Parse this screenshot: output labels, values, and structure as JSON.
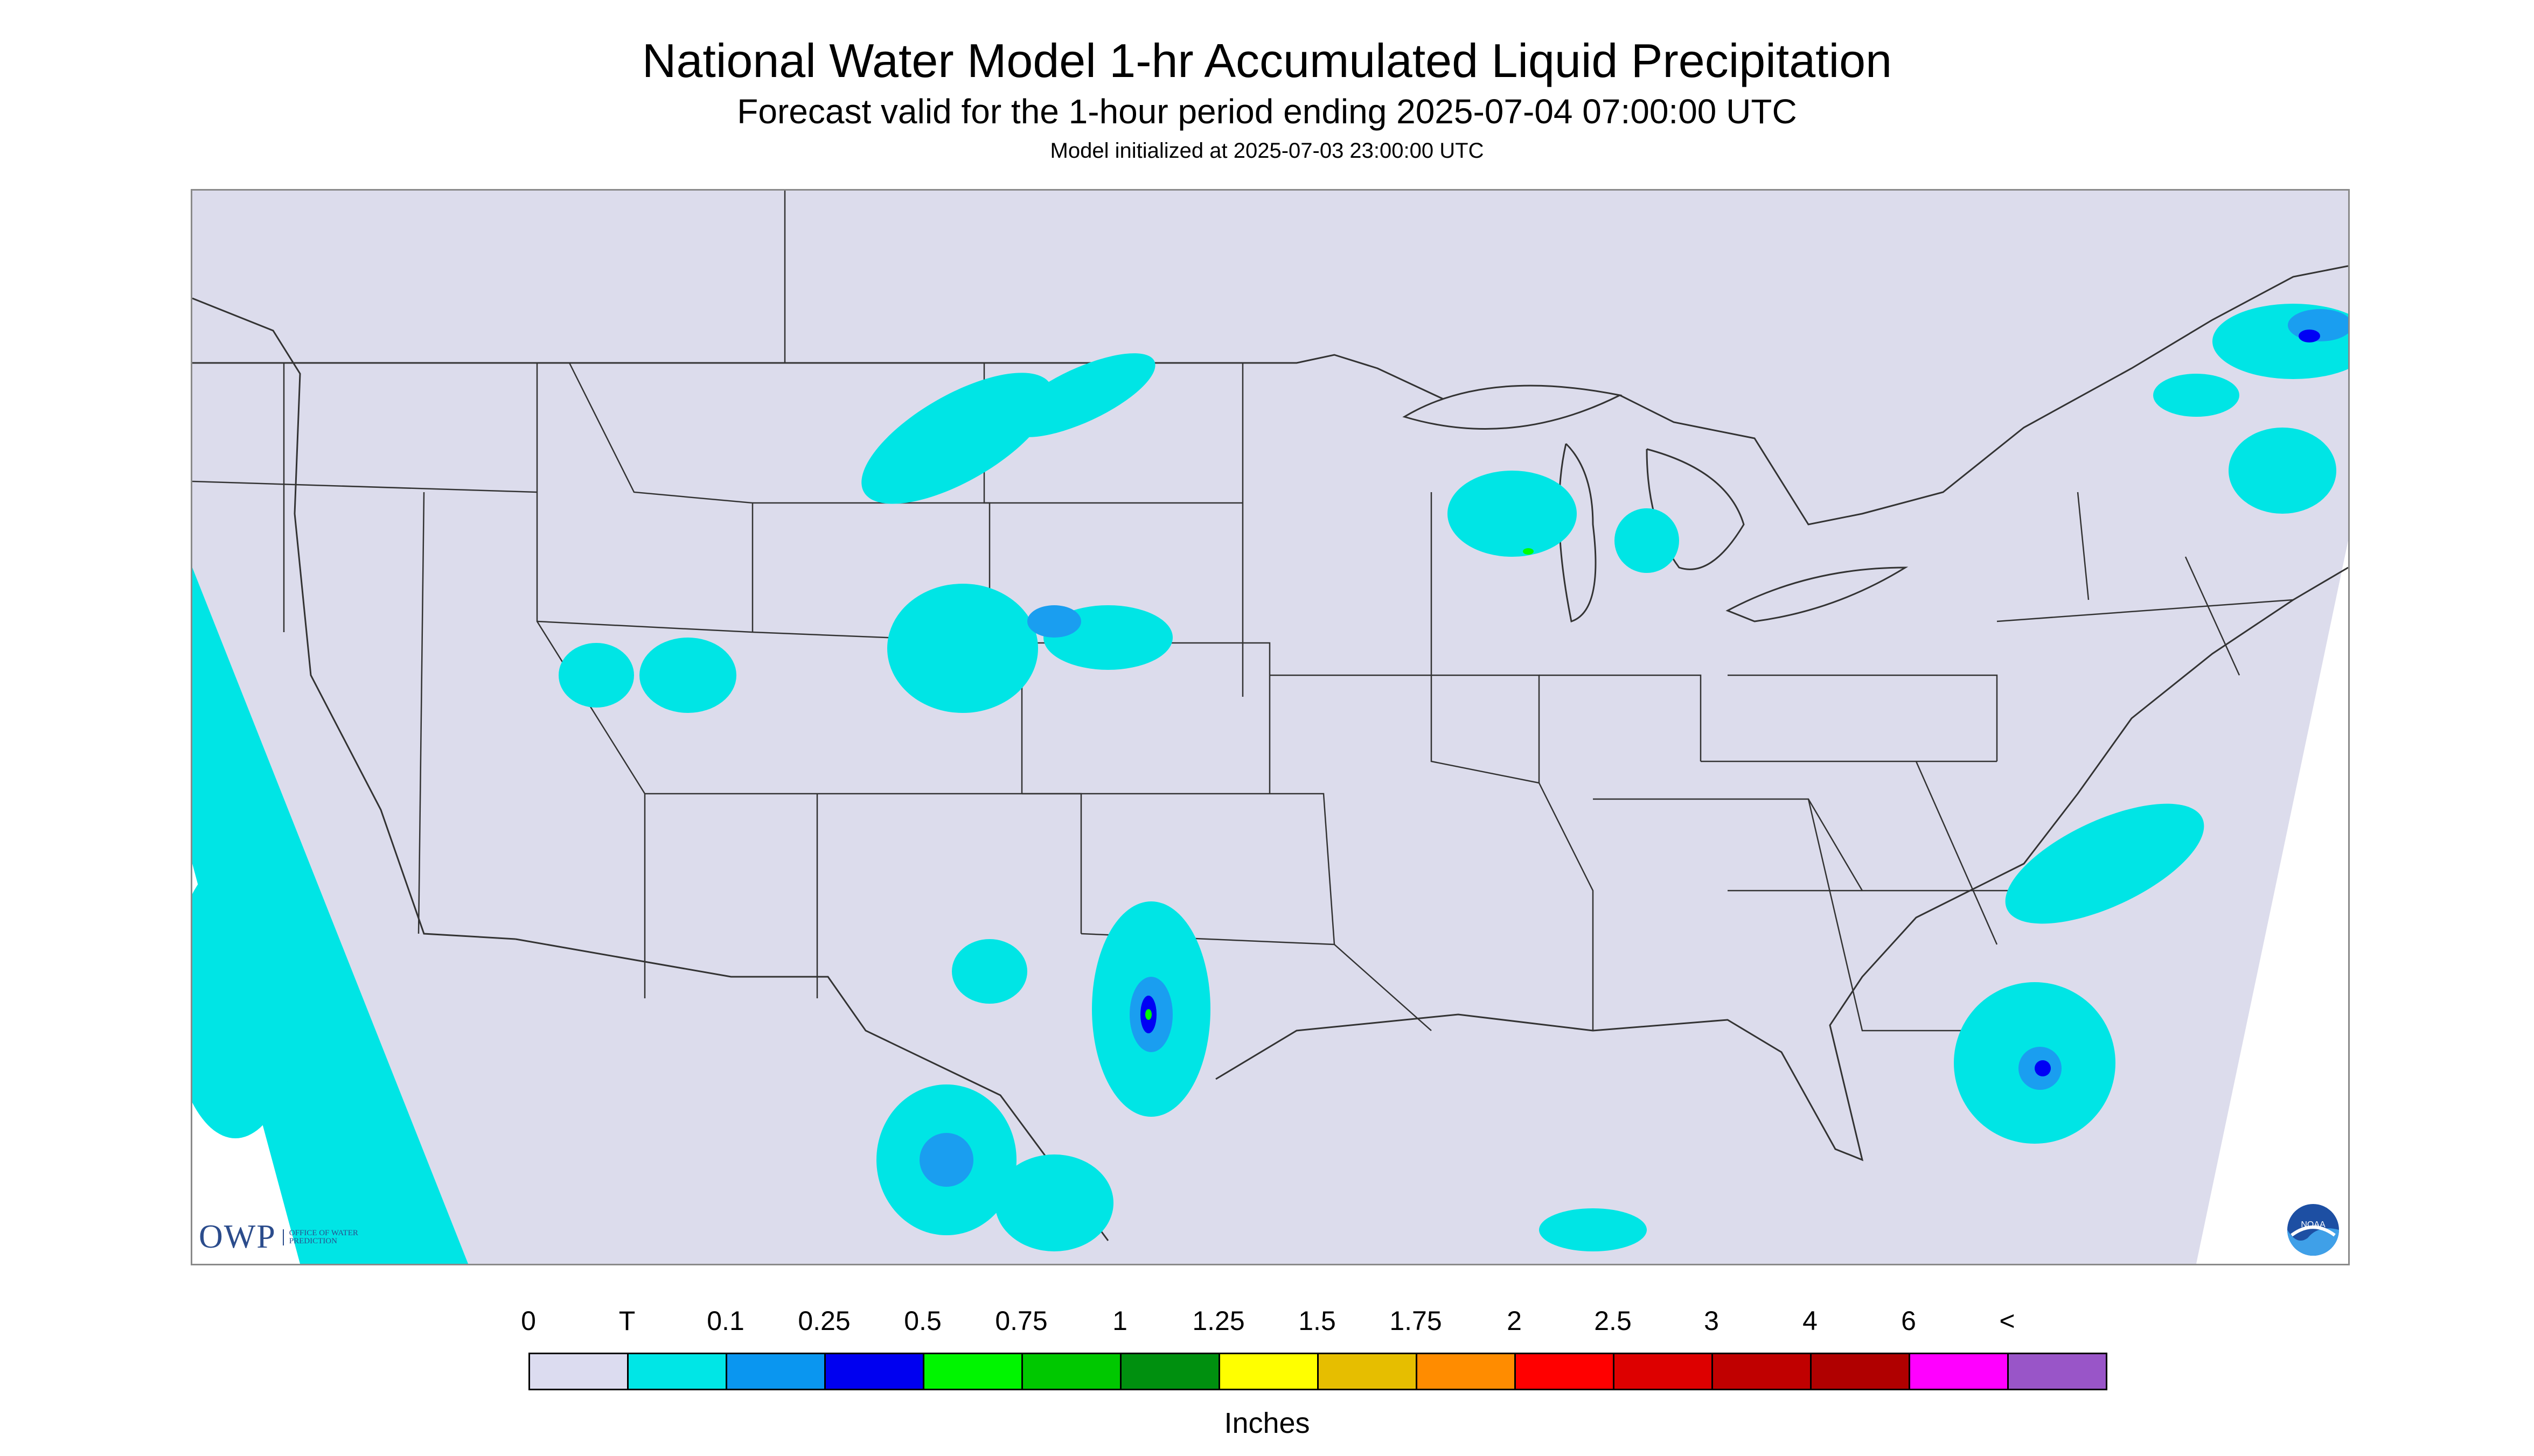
{
  "header": {
    "title": "National Water Model 1-hr Accumulated Liquid Precipitation",
    "subtitle": "Forecast valid for the 1-hour period ending 2025-07-04 07:00:00 UTC",
    "init": "Model initialized at 2025-07-03 23:00:00 UTC"
  },
  "colors": {
    "land": "#dcdcec",
    "water_outside": "#ffffff",
    "border": "#2a2a2a",
    "precip_trace": "#00e5e5",
    "precip_light": "#1a9ef0",
    "precip_blue": "#0000f5",
    "precip_green": "#00ff00"
  },
  "logos": {
    "owp_letters": "OWP",
    "owp_sub": "OFFICE OF WATER PREDICTION",
    "noaa_text": "NOAA",
    "owp_icon": "owp-logo",
    "noaa_icon": "noaa-logo"
  },
  "legend": {
    "labels": [
      "0",
      "T",
      "0.1",
      "0.25",
      "0.5",
      "0.75",
      "1",
      "1.25",
      "1.5",
      "1.75",
      "2",
      "2.5",
      "3",
      "4",
      "6",
      "<"
    ],
    "colors": [
      "#dcdcf0",
      "#00e6e6",
      "#0a96f0",
      "#0000f0",
      "#00f500",
      "#00c800",
      "#00900f",
      "#ffff00",
      "#e6be00",
      "#ff8c00",
      "#ff0000",
      "#dd0000",
      "#c00000",
      "#b00000",
      "#ff00ff",
      "#9955c8"
    ],
    "units": "Inches"
  }
}
